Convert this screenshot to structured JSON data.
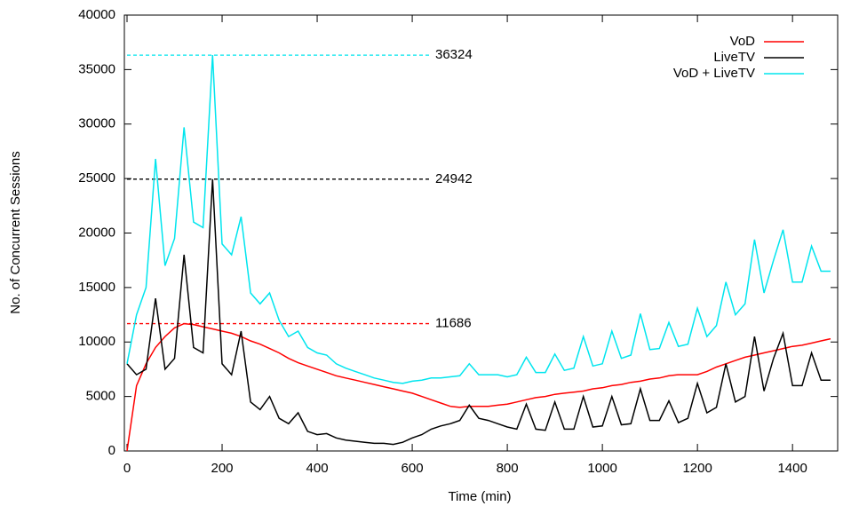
{
  "chart_data": {
    "type": "line",
    "xlabel": "Time (min)",
    "ylabel": "No. of Concurrent Sessions",
    "x": [
      0,
      20,
      40,
      60,
      80,
      100,
      120,
      140,
      160,
      180,
      200,
      220,
      240,
      260,
      280,
      300,
      320,
      340,
      360,
      380,
      400,
      420,
      440,
      460,
      480,
      500,
      520,
      540,
      560,
      580,
      600,
      620,
      640,
      660,
      680,
      700,
      720,
      740,
      760,
      780,
      800,
      820,
      840,
      860,
      880,
      900,
      920,
      940,
      960,
      980,
      1000,
      1020,
      1040,
      1060,
      1080,
      1100,
      1120,
      1140,
      1160,
      1180,
      1200,
      1220,
      1240,
      1260,
      1280,
      1300,
      1320,
      1340,
      1360,
      1380,
      1400,
      1420,
      1440,
      1460,
      1480
    ],
    "series": [
      {
        "name": "VoD",
        "color": "#ff0000",
        "values": [
          0,
          6000,
          8000,
          9500,
          10500,
          11300,
          11686,
          11600,
          11400,
          11200,
          11000,
          10800,
          10500,
          10100,
          9800,
          9400,
          9000,
          8500,
          8100,
          7800,
          7500,
          7200,
          6900,
          6700,
          6500,
          6300,
          6100,
          5900,
          5700,
          5500,
          5300,
          5000,
          4700,
          4400,
          4100,
          4000,
          4100,
          4100,
          4100,
          4200,
          4300,
          4500,
          4700,
          4900,
          5000,
          5200,
          5300,
          5400,
          5500,
          5700,
          5800,
          6000,
          6100,
          6300,
          6400,
          6600,
          6700,
          6900,
          7000,
          7000,
          7000,
          7300,
          7700,
          8000,
          8300,
          8600,
          8800,
          9000,
          9200,
          9400,
          9600,
          9700,
          9900,
          10100,
          10300
        ]
      },
      {
        "name": "LiveTV",
        "color": "#000000",
        "values": [
          8000,
          7000,
          7500,
          14000,
          7500,
          8500,
          18000,
          9500,
          9000,
          24942,
          8000,
          7000,
          11000,
          4500,
          3800,
          5000,
          3000,
          2500,
          3500,
          1800,
          1500,
          1600,
          1200,
          1000,
          900,
          800,
          700,
          700,
          600,
          800,
          1200,
          1500,
          2000,
          2300,
          2500,
          2800,
          4200,
          3000,
          2800,
          2500,
          2200,
          2000,
          4300,
          2000,
          1900,
          4500,
          2000,
          2000,
          5000,
          2200,
          2300,
          5000,
          2400,
          2500,
          5700,
          2800,
          2800,
          4600,
          2600,
          3000,
          6200,
          3500,
          4000,
          8000,
          4500,
          5000,
          10500,
          5500,
          8500,
          10800,
          6000,
          6000,
          9000,
          6500,
          6500
        ]
      },
      {
        "name": "VoD + LiveTV",
        "color": "#00e5ee",
        "values": [
          8000,
          12500,
          15000,
          26800,
          17000,
          19500,
          29700,
          21000,
          20500,
          36324,
          19000,
          18000,
          21500,
          14500,
          13500,
          14500,
          12000,
          10500,
          11000,
          9500,
          9000,
          8800,
          8000,
          7600,
          7300,
          7000,
          6700,
          6500,
          6300,
          6200,
          6400,
          6500,
          6700,
          6700,
          6800,
          6900,
          8000,
          7000,
          7000,
          7000,
          6800,
          7000,
          8600,
          7200,
          7200,
          8900,
          7400,
          7600,
          10500,
          7800,
          8000,
          11000,
          8500,
          8800,
          12600,
          9300,
          9400,
          11800,
          9600,
          9800,
          13100,
          10500,
          11500,
          15500,
          12500,
          13500,
          19400,
          14500,
          17500,
          20300,
          15500,
          15500,
          18800,
          16500,
          16500
        ]
      }
    ],
    "annotations": [
      {
        "value": 36324,
        "color": "#00e5ee"
      },
      {
        "value": 24942,
        "color": "#000000"
      },
      {
        "value": 11686,
        "color": "#ff0000"
      }
    ],
    "xlim": [
      0,
      1495
    ],
    "xticks": [
      0,
      200,
      400,
      600,
      800,
      1000,
      1200,
      1400
    ],
    "ylim": [
      0,
      40000
    ],
    "yticks": [
      0,
      5000,
      10000,
      15000,
      20000,
      25000,
      30000,
      35000,
      40000
    ],
    "legend": "top-right"
  }
}
